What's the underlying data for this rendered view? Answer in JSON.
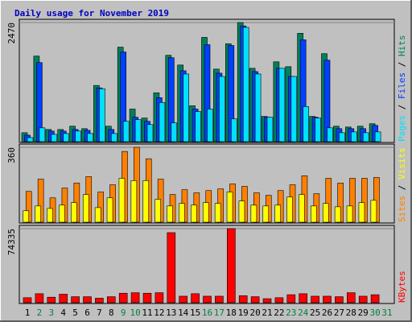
{
  "title": "Daily usage for November 2019",
  "chart_data": [
    {
      "type": "bar",
      "legend_separator": " / ",
      "ylim": [
        0,
        2470
      ],
      "yticks": [
        2470
      ],
      "series": [
        {
          "name": "Hits",
          "color": "#00805c",
          "values": [
            186,
            1775,
            253,
            253,
            321,
            270,
            1166,
            321,
            1960,
            676,
            490,
            1014,
            1791,
            1589,
            744,
            2162,
            1504,
            2030,
            2470,
            1521,
            524,
            1656,
            1555,
            2247,
            524,
            1825,
            321,
            304,
            321,
            372,
            null
          ]
        },
        {
          "name": "Files",
          "color": "#0040ff",
          "values": [
            135,
            1640,
            220,
            220,
            253,
            236,
            1115,
            253,
            1859,
            507,
            422,
            913,
            1741,
            1470,
            676,
            2011,
            1420,
            1994,
            2400,
            1453,
            507,
            1521,
            1352,
            2112,
            507,
            1690,
            270,
            270,
            270,
            338,
            null
          ]
        },
        {
          "name": "Pages",
          "color": "#00e0ff",
          "values": [
            85,
            287,
            152,
            169,
            220,
            169,
            1098,
            169,
            422,
            456,
            355,
            811,
            389,
            1403,
            625,
            676,
            1352,
            473,
            2370,
            1403,
            507,
            1521,
            1352,
            727,
            490,
            287,
            186,
            203,
            186,
            203,
            null
          ]
        }
      ]
    },
    {
      "type": "bar",
      "legend_separator": " / ",
      "ylim": [
        0,
        360
      ],
      "yticks": [
        360
      ],
      "series": [
        {
          "name": "Visits",
          "color": "#ffff00",
          "values": [
            55,
            78,
            66,
            82,
            94,
            133,
            70,
            117,
            211,
            200,
            200,
            110,
            78,
            90,
            82,
            94,
            90,
            145,
            102,
            82,
            78,
            82,
            121,
            133,
            78,
            90,
            74,
            78,
            94,
            105,
            null
          ]
        },
        {
          "name": "Sites",
          "color": "#ff8000",
          "values": [
            148,
            207,
            117,
            164,
            188,
            219,
            145,
            180,
            340,
            360,
            305,
            207,
            133,
            156,
            141,
            152,
            160,
            184,
            172,
            141,
            129,
            152,
            180,
            223,
            137,
            211,
            188,
            211,
            211,
            215,
            null
          ]
        }
      ]
    },
    {
      "type": "bar",
      "legend_separator": " / ",
      "ylim": [
        0,
        74335
      ],
      "yticks": [
        74335
      ],
      "categories": [
        "1",
        "2",
        "3",
        "4",
        "5",
        "6",
        "7",
        "8",
        "9",
        "10",
        "11",
        "12",
        "13",
        "14",
        "15",
        "16",
        "17",
        "18",
        "19",
        "20",
        "21",
        "22",
        "23",
        "24",
        "25",
        "26",
        "27",
        "28",
        "29",
        "30",
        "31"
      ],
      "category_colors": [
        "#000000",
        "#008040",
        "#008040",
        "#000000",
        "#000000",
        "#000000",
        "#000000",
        "#000000",
        "#008040",
        "#008040",
        "#000000",
        "#000000",
        "#000000",
        "#000000",
        "#000000",
        "#008040",
        "#008040",
        "#000000",
        "#000000",
        "#000000",
        "#000000",
        "#000000",
        "#008040",
        "#008040",
        "#000000",
        "#000000",
        "#000000",
        "#000000",
        "#000000",
        "#008040",
        "#008040"
      ],
      "series": [
        {
          "name": "KBytes",
          "color": "#ff0000",
          "values": [
            5000,
            9000,
            5500,
            8500,
            6000,
            6000,
            4500,
            6000,
            9500,
            10000,
            9500,
            10000,
            70300,
            6500,
            9000,
            6500,
            6500,
            74335,
            7000,
            6000,
            4000,
            5000,
            8000,
            9000,
            6500,
            6500,
            6000,
            10000,
            6500,
            8000,
            null
          ]
        }
      ]
    }
  ]
}
